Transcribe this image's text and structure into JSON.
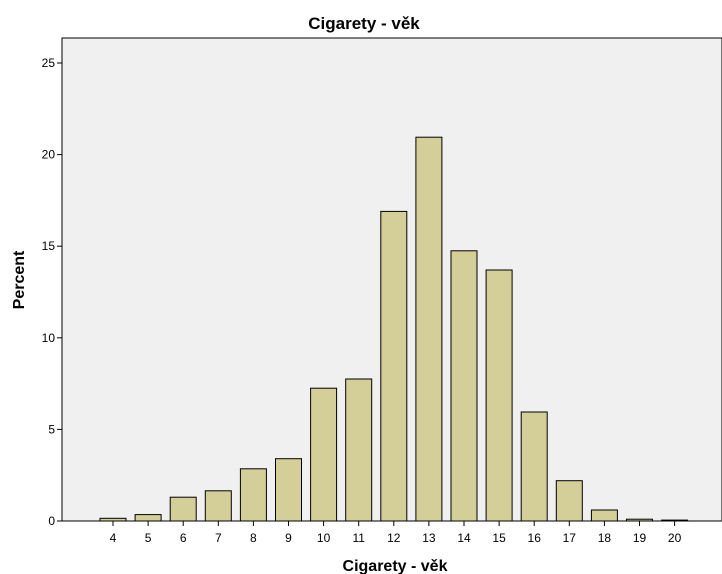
{
  "chart_data": {
    "type": "bar",
    "title": "Cigarety - věk",
    "xlabel": "Cigarety - věk",
    "ylabel": "Percent",
    "categories": [
      "4",
      "5",
      "6",
      "7",
      "8",
      "9",
      "10",
      "11",
      "12",
      "13",
      "14",
      "15",
      "16",
      "17",
      "18",
      "19",
      "20"
    ],
    "values": [
      0.15,
      0.35,
      1.3,
      1.65,
      2.85,
      3.4,
      7.25,
      7.75,
      16.9,
      20.95,
      14.75,
      13.7,
      5.95,
      2.2,
      0.6,
      0.1,
      0.05
    ],
    "ylim": [
      0,
      25
    ],
    "yticks": [
      0,
      5,
      10,
      15,
      20,
      25
    ],
    "grid": false,
    "legend": "none",
    "colors": {
      "bar_fill": "#d4cf99",
      "bar_stroke": "#000000",
      "plot_background": "#f0f0f0",
      "axis": "#000000"
    }
  }
}
